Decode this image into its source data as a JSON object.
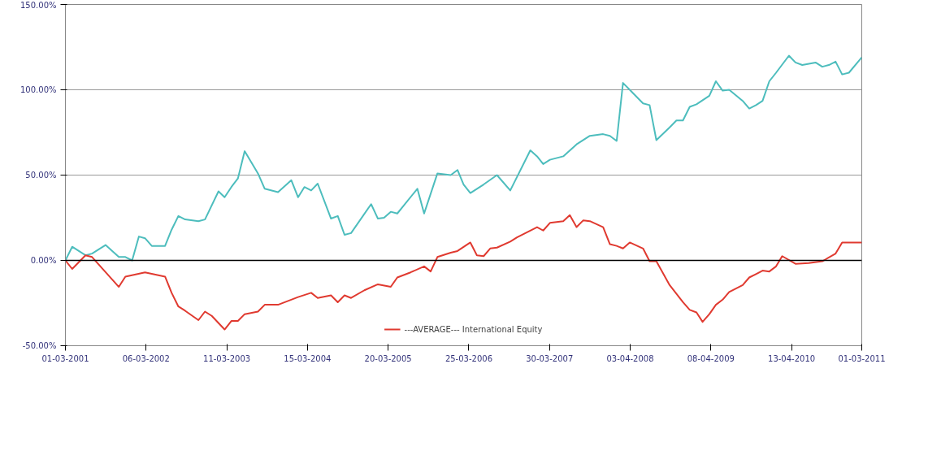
{
  "chart_data": {
    "type": "line",
    "xlim": [
      "2001-03-01",
      "2011-03-01"
    ],
    "xticks": [
      {
        "value": "2001-03-01",
        "label": "01-03-2001"
      },
      {
        "value": "2002-03-06",
        "label": "06-03-2002"
      },
      {
        "value": "2003-03-11",
        "label": "11-03-2003"
      },
      {
        "value": "2004-03-15",
        "label": "15-03-2004"
      },
      {
        "value": "2005-03-20",
        "label": "20-03-2005"
      },
      {
        "value": "2006-03-25",
        "label": "25-03-2006"
      },
      {
        "value": "2007-03-30",
        "label": "30-03-2007"
      },
      {
        "value": "2008-04-03",
        "label": "03-04-2008"
      },
      {
        "value": "2009-04-08",
        "label": "08-04-2009"
      },
      {
        "value": "2010-04-13",
        "label": "13-04-2010"
      },
      {
        "value": "2011-03-01",
        "label": "01-03-2011"
      }
    ],
    "ylim": [
      -50,
      150
    ],
    "yticks": [
      {
        "value": -50,
        "label": "-50.00%"
      },
      {
        "value": 0,
        "label": "0.00%"
      },
      {
        "value": 50,
        "label": "50.00%"
      },
      {
        "value": 100,
        "label": "100.00%"
      },
      {
        "value": 150,
        "label": "150.00%"
      }
    ],
    "grid": "y",
    "legend": "bottom",
    "marker": "none",
    "line_style": "solid",
    "ref_lines": [
      {
        "axis": "y",
        "value": 0,
        "color": "#000000"
      }
    ],
    "series": [
      {
        "color": "#4dbdbd",
        "x": [
          "2001-03",
          "2001-04",
          "2001-06",
          "2001-07",
          "2001-09",
          "2001-11",
          "2001-12",
          "2002-01",
          "2002-02",
          "2002-03",
          "2002-04",
          "2002-06",
          "2002-07",
          "2002-08",
          "2002-09",
          "2002-11",
          "2002-12",
          "2003-02",
          "2003-03",
          "2003-04",
          "2003-05",
          "2003-06",
          "2003-08",
          "2003-09",
          "2003-11",
          "2004-01",
          "2004-02",
          "2004-03",
          "2004-04",
          "2004-05",
          "2004-07",
          "2004-08",
          "2004-09",
          "2004-10",
          "2005-01",
          "2005-02",
          "2005-03",
          "2005-04",
          "2005-05",
          "2005-08",
          "2005-09",
          "2005-11",
          "2006-01",
          "2006-02",
          "2006-03",
          "2006-04",
          "2006-06",
          "2006-08",
          "2006-10",
          "2007-01",
          "2007-02",
          "2007-03",
          "2007-04",
          "2007-06",
          "2007-08",
          "2007-10",
          "2007-12",
          "2008-01",
          "2008-02",
          "2008-03",
          "2008-04",
          "2008-06",
          "2008-07",
          "2008-08",
          "2008-10",
          "2008-11",
          "2008-12",
          "2009-01",
          "2009-02",
          "2009-04",
          "2009-05",
          "2009-06",
          "2009-07",
          "2009-09",
          "2009-10",
          "2009-11",
          "2009-12",
          "2010-01",
          "2010-02",
          "2010-04",
          "2010-05",
          "2010-06",
          "2010-08",
          "2010-09",
          "2010-10",
          "2010-11",
          "2010-12",
          "2011-01",
          "2011-03"
        ],
        "values": [
          0,
          8,
          3,
          4,
          9,
          2,
          2,
          0,
          14,
          13,
          8.5,
          8.5,
          18,
          26,
          24,
          23,
          24,
          40.5,
          37,
          43,
          48,
          64,
          51,
          42,
          40,
          47,
          37,
          43,
          41,
          45,
          24.5,
          26,
          15,
          16,
          33,
          24.5,
          25,
          28.5,
          27.5,
          42,
          27.5,
          51,
          50,
          53,
          44.5,
          39.5,
          44.5,
          50,
          41,
          64.5,
          61,
          56.5,
          59,
          61,
          68,
          73,
          74,
          73,
          70,
          104,
          100,
          92,
          91,
          70.5,
          78,
          82,
          82,
          90,
          91.5,
          96.5,
          105,
          99.5,
          100,
          93.5,
          89,
          91,
          93.5,
          105,
          110,
          120,
          116,
          114.5,
          116,
          113.5,
          114.5,
          116.5,
          109,
          110,
          119
        ]
      },
      {
        "name": "---AVERAGE--- International Equity",
        "color": "#e03a30",
        "x": [
          "2001-03",
          "2001-04",
          "2001-06",
          "2001-07",
          "2001-11",
          "2001-12",
          "2002-03",
          "2002-06",
          "2002-07",
          "2002-08",
          "2002-09",
          "2002-11",
          "2002-12",
          "2003-01",
          "2003-03",
          "2003-04",
          "2003-05",
          "2003-06",
          "2003-08",
          "2003-09",
          "2003-11",
          "2004-02",
          "2004-04",
          "2004-05",
          "2004-07",
          "2004-08",
          "2004-09",
          "2004-10",
          "2004-12",
          "2005-02",
          "2005-04",
          "2005-05",
          "2005-07",
          "2005-09",
          "2005-10",
          "2005-11",
          "2006-01",
          "2006-02",
          "2006-04",
          "2006-05",
          "2006-06",
          "2006-07",
          "2006-08",
          "2006-10",
          "2006-11",
          "2007-02",
          "2007-03",
          "2007-04",
          "2007-06",
          "2007-07",
          "2007-08",
          "2007-09",
          "2007-10",
          "2007-12",
          "2008-01",
          "2008-02",
          "2008-03",
          "2008-04",
          "2008-06",
          "2008-07",
          "2008-08",
          "2008-10",
          "2008-12",
          "2009-01",
          "2009-02",
          "2009-03",
          "2009-04",
          "2009-05",
          "2009-06",
          "2009-07",
          "2009-09",
          "2009-10",
          "2009-11",
          "2009-12",
          "2010-01",
          "2010-02",
          "2010-03",
          "2010-05",
          "2010-07",
          "2010-09",
          "2010-11",
          "2010-12",
          "2011-03"
        ],
        "values": [
          0,
          -5,
          3,
          2,
          -15.5,
          -9.5,
          -7,
          -9.5,
          -19,
          -27,
          -29.5,
          -35,
          -30,
          -32.5,
          -40.5,
          -35.5,
          -35.5,
          -31.5,
          -30,
          -26,
          -26,
          -21.5,
          -19,
          -22,
          -20.5,
          -24.5,
          -20.5,
          -22,
          -17.5,
          -14,
          -15.5,
          -10,
          -7,
          -3.5,
          -6.5,
          2,
          4.5,
          5.5,
          10.5,
          3,
          2.5,
          7,
          7.5,
          11,
          13.5,
          19.5,
          17.5,
          22,
          23,
          26.5,
          19.5,
          23.5,
          23,
          19.5,
          9.5,
          8.5,
          7,
          10.5,
          7,
          -0.5,
          -0.5,
          -14.5,
          -24.5,
          -29,
          -30.5,
          -36,
          -31.5,
          -26,
          -23,
          -18.5,
          -14.5,
          -10,
          -8,
          -6,
          -6.5,
          -3.5,
          2.5,
          -2,
          -1.5,
          -0.5,
          4,
          10.5,
          10.5
        ]
      }
    ]
  }
}
